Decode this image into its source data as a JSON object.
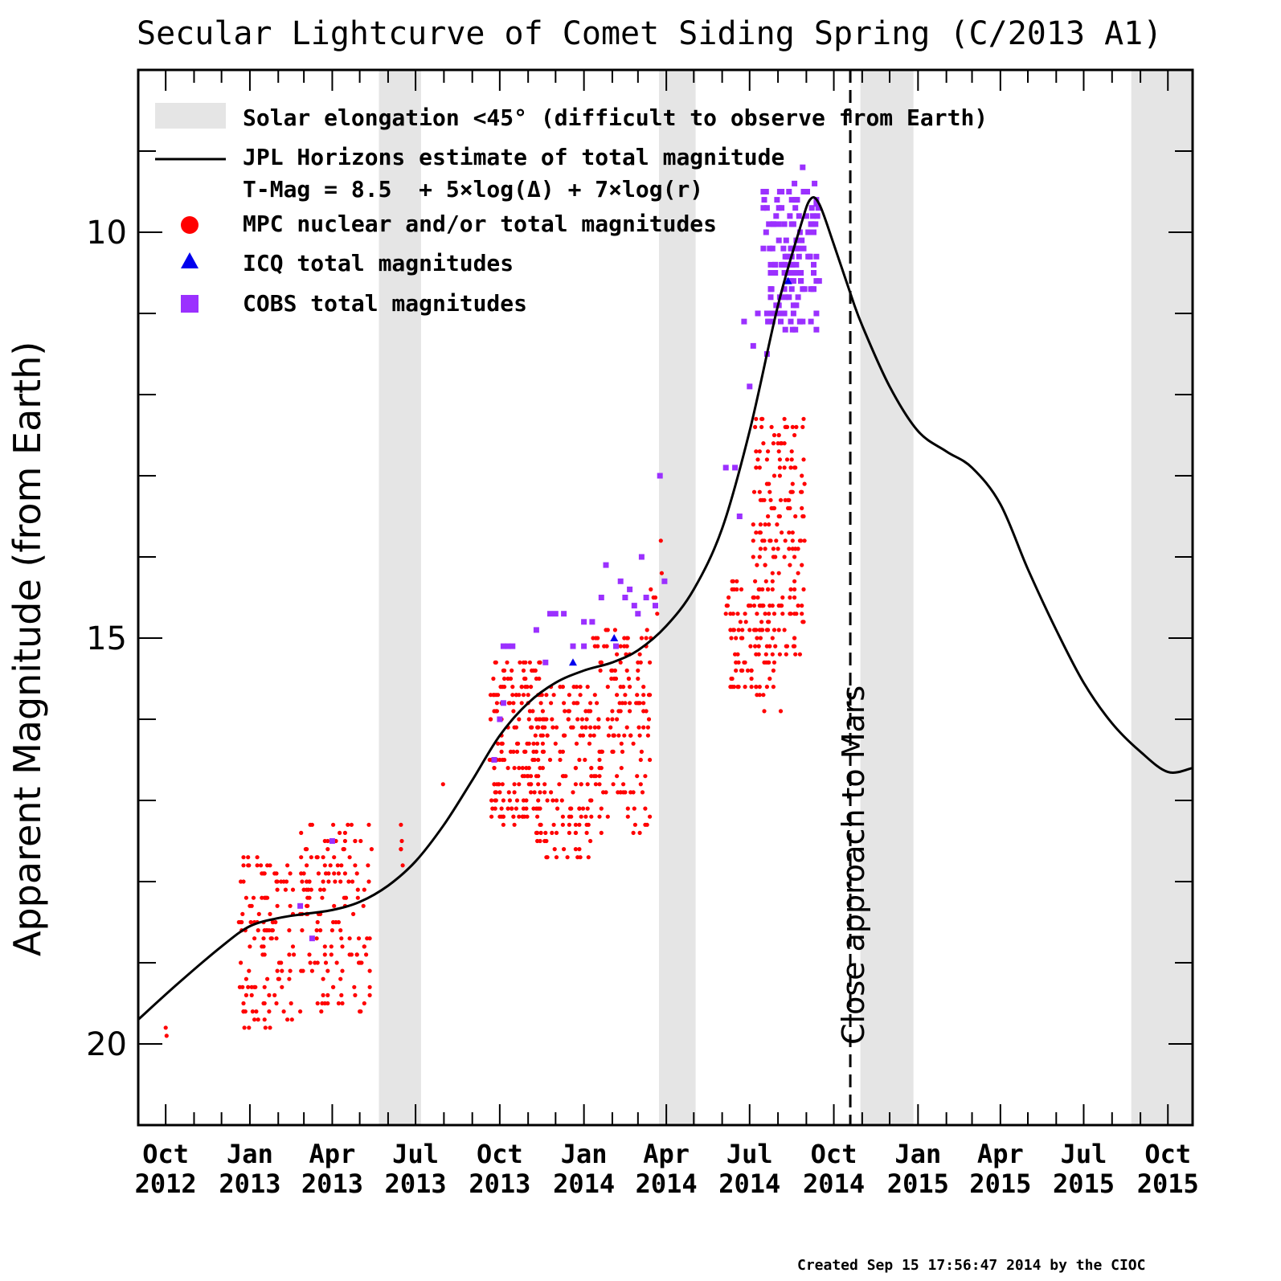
{
  "chart_data": {
    "type": "scatter",
    "title": "Secular Lightcurve of Comet Siding Spring (C/2013 A1)",
    "ylabel": "Apparent Magnitude (from Earth)",
    "xlabel": "",
    "y_inverted": true,
    "ylim": [
      21.0,
      8.0
    ],
    "xlim": [
      "2012-09-01",
      "2015-10-28"
    ],
    "y_major_ticks": [
      10,
      15,
      20
    ],
    "x_tick_labels": [
      {
        "date": "2012-10-01",
        "month": "Oct",
        "year": "2012"
      },
      {
        "date": "2013-01-01",
        "month": "Jan",
        "year": "2013"
      },
      {
        "date": "2013-04-01",
        "month": "Apr",
        "year": "2013"
      },
      {
        "date": "2013-07-01",
        "month": "Jul",
        "year": "2013"
      },
      {
        "date": "2013-10-01",
        "month": "Oct",
        "year": "2013"
      },
      {
        "date": "2014-01-01",
        "month": "Jan",
        "year": "2014"
      },
      {
        "date": "2014-04-01",
        "month": "Apr",
        "year": "2014"
      },
      {
        "date": "2014-07-01",
        "month": "Jul",
        "year": "2014"
      },
      {
        "date": "2014-10-01",
        "month": "Oct",
        "year": "2014"
      },
      {
        "date": "2015-01-01",
        "month": "Jan",
        "year": "2015"
      },
      {
        "date": "2015-04-01",
        "month": "Apr",
        "year": "2015"
      },
      {
        "date": "2015-07-01",
        "month": "Jul",
        "year": "2015"
      },
      {
        "date": "2015-10-01",
        "month": "Oct",
        "year": "2015"
      }
    ],
    "grid": false,
    "legend_position": "top-left",
    "legend": [
      {
        "marker": "band",
        "label": "Solar elongation <45° (difficult to observe from Earth)"
      },
      {
        "marker": "line",
        "label": "JPL Horizons estimate of total magnitude",
        "sublabel": "T-Mag = 8.5  + 5×log(Δ) + 7×log(r)"
      },
      {
        "marker": "circle",
        "label": "MPC nuclear and/or total magnitudes"
      },
      {
        "marker": "triangle",
        "label": "ICQ total magnitudes"
      },
      {
        "marker": "square",
        "label": "COBS total magnitudes"
      }
    ],
    "shaded_bands": [
      [
        "2013-05-22",
        "2013-07-07"
      ],
      [
        "2014-03-24",
        "2014-05-03"
      ],
      [
        "2014-10-30",
        "2014-12-27"
      ],
      [
        "2015-08-22",
        "2015-10-28"
      ]
    ],
    "annotation": {
      "date": "2014-10-19",
      "label": "Close approach to Mars",
      "style": "dashed-vertical"
    },
    "colors": {
      "mpc": "#ff0000",
      "icq": "#0000ee",
      "cobs": "#9b30ff",
      "band": "#e5e5e5",
      "curve": "#000000"
    },
    "series": [
      {
        "name": "JPL Horizons estimate of total magnitude",
        "kind": "line",
        "points": [
          [
            "2012-09-01",
            19.7
          ],
          [
            "2012-10-15",
            19.25
          ],
          [
            "2012-12-01",
            18.8
          ],
          [
            "2013-01-01",
            18.55
          ],
          [
            "2013-02-01",
            18.45
          ],
          [
            "2013-03-01",
            18.4
          ],
          [
            "2013-04-01",
            18.35
          ],
          [
            "2013-05-01",
            18.25
          ],
          [
            "2013-06-01",
            18.05
          ],
          [
            "2013-07-01",
            17.75
          ],
          [
            "2013-08-01",
            17.3
          ],
          [
            "2013-09-01",
            16.75
          ],
          [
            "2013-10-01",
            16.2
          ],
          [
            "2013-11-01",
            15.8
          ],
          [
            "2013-12-01",
            15.55
          ],
          [
            "2014-01-01",
            15.4
          ],
          [
            "2014-02-01",
            15.3
          ],
          [
            "2014-03-01",
            15.15
          ],
          [
            "2014-04-01",
            14.85
          ],
          [
            "2014-05-01",
            14.4
          ],
          [
            "2014-06-01",
            13.65
          ],
          [
            "2014-07-01",
            12.45
          ],
          [
            "2014-08-01",
            10.9
          ],
          [
            "2014-08-25",
            9.95
          ],
          [
            "2014-09-05",
            9.6
          ],
          [
            "2014-09-15",
            9.65
          ],
          [
            "2014-10-01",
            10.15
          ],
          [
            "2014-10-19",
            10.75
          ],
          [
            "2014-11-01",
            11.15
          ],
          [
            "2014-12-01",
            11.9
          ],
          [
            "2015-01-01",
            12.45
          ],
          [
            "2015-02-01",
            12.7
          ],
          [
            "2015-03-01",
            12.9
          ],
          [
            "2015-04-01",
            13.35
          ],
          [
            "2015-05-01",
            14.15
          ],
          [
            "2015-06-01",
            14.9
          ],
          [
            "2015-07-01",
            15.55
          ],
          [
            "2015-08-01",
            16.05
          ],
          [
            "2015-09-01",
            16.4
          ],
          [
            "2015-10-01",
            16.65
          ],
          [
            "2015-10-28",
            16.6
          ]
        ]
      },
      {
        "name": "MPC nuclear and/or total magnitudes",
        "kind": "circle",
        "clusters": [
          {
            "from": "2012-10-01",
            "to": "2012-10-03",
            "mag_min": 19.7,
            "mag_max": 20.0,
            "n": 2
          },
          {
            "from": "2012-12-20",
            "to": "2013-02-20",
            "mag_min": 17.7,
            "mag_max": 19.8,
            "n": 120
          },
          {
            "from": "2013-02-25",
            "to": "2013-05-15",
            "mag_min": 17.3,
            "mag_max": 19.6,
            "n": 150
          },
          {
            "from": "2013-06-15",
            "to": "2013-06-17",
            "mag_min": 17.2,
            "mag_max": 17.8,
            "n": 5
          },
          {
            "from": "2013-07-30",
            "to": "2013-08-01",
            "mag_min": 16.8,
            "mag_max": 16.8,
            "n": 1
          },
          {
            "from": "2013-09-20",
            "to": "2013-11-15",
            "mag_min": 15.3,
            "mag_max": 17.3,
            "n": 170
          },
          {
            "from": "2013-11-10",
            "to": "2014-01-10",
            "mag_min": 15.6,
            "mag_max": 17.8,
            "n": 150
          },
          {
            "from": "2014-01-10",
            "to": "2014-03-15",
            "mag_min": 14.9,
            "mag_max": 17.4,
            "n": 150
          },
          {
            "from": "2014-03-15",
            "to": "2014-03-27",
            "mag_min": 13.8,
            "mag_max": 15.4,
            "n": 6
          },
          {
            "from": "2014-06-05",
            "to": "2014-07-30",
            "mag_min": 14.3,
            "mag_max": 15.7,
            "n": 90
          },
          {
            "from": "2014-07-05",
            "to": "2014-08-30",
            "mag_min": 12.3,
            "mag_max": 15.2,
            "n": 180
          },
          {
            "from": "2014-07-15",
            "to": "2014-08-10",
            "mag_min": 15.8,
            "mag_max": 16.0,
            "n": 2
          }
        ]
      },
      {
        "name": "ICQ total magnitudes",
        "kind": "triangle",
        "points": [
          [
            "2013-12-20",
            15.3
          ],
          [
            "2014-02-03",
            15.0
          ],
          [
            "2014-08-12",
            10.6
          ]
        ]
      },
      {
        "name": "COBS total magnitudes",
        "kind": "square",
        "points": [
          [
            "2013-02-25",
            18.3
          ],
          [
            "2013-03-10",
            18.7
          ],
          [
            "2013-04-01",
            17.5
          ],
          [
            "2013-09-25",
            16.5
          ],
          [
            "2013-10-01",
            16.0
          ],
          [
            "2013-10-05",
            15.8
          ],
          [
            "2013-10-05",
            15.1
          ],
          [
            "2013-10-10",
            15.1
          ],
          [
            "2013-10-15",
            15.1
          ],
          [
            "2013-11-10",
            14.9
          ],
          [
            "2013-11-20",
            15.3
          ],
          [
            "2013-11-25",
            14.7
          ],
          [
            "2013-12-01",
            14.7
          ],
          [
            "2013-12-10",
            14.7
          ],
          [
            "2013-12-20",
            15.1
          ],
          [
            "2014-01-01",
            15.1
          ],
          [
            "2014-01-01",
            14.8
          ],
          [
            "2014-01-10",
            14.8
          ],
          [
            "2014-01-20",
            14.5
          ],
          [
            "2014-01-25",
            14.1
          ],
          [
            "2014-02-05",
            15.1
          ],
          [
            "2014-02-10",
            14.3
          ],
          [
            "2014-02-15",
            14.5
          ],
          [
            "2014-02-20",
            14.4
          ],
          [
            "2014-02-25",
            14.6
          ],
          [
            "2014-03-01",
            14.7
          ],
          [
            "2014-03-05",
            14.0
          ],
          [
            "2014-03-10",
            14.5
          ],
          [
            "2014-03-20",
            14.6
          ],
          [
            "2014-03-25",
            13.0
          ],
          [
            "2014-03-30",
            14.3
          ],
          [
            "2014-06-05",
            12.9
          ],
          [
            "2014-06-15",
            12.9
          ],
          [
            "2014-06-20",
            13.5
          ],
          [
            "2014-06-25",
            11.1
          ],
          [
            "2014-07-01",
            11.9
          ],
          [
            "2014-07-05",
            11.4
          ],
          [
            "2014-07-10",
            11.0
          ],
          [
            "2014-07-20",
            11.5
          ],
          [
            "2014-07-25",
            10.7
          ],
          [
            "2014-07-30",
            10.9
          ],
          [
            "2014-08-05",
            10.4
          ],
          [
            "2014-08-10",
            10.1
          ],
          [
            "2014-08-15",
            10.2
          ],
          [
            "2014-08-20",
            9.7
          ],
          [
            "2014-08-25",
            10.0
          ],
          [
            "2014-09-01",
            9.5
          ],
          [
            "2014-09-05",
            10.3
          ],
          [
            "2014-09-08",
            9.8
          ],
          [
            "2014-09-10",
            9.4
          ],
          [
            "2014-09-15",
            10.6
          ],
          [
            "2014-08-28",
            9.2
          ],
          [
            "2014-09-12",
            9.65
          ],
          [
            "2014-08-08",
            9.9
          ]
        ],
        "clusters": [
          {
            "from": "2014-07-15",
            "to": "2014-09-15",
            "mag_min": 9.4,
            "mag_max": 11.2,
            "n": 120
          }
        ]
      }
    ],
    "footer": "Created Sep 15 17:56:47 2014 by the CIOC"
  }
}
